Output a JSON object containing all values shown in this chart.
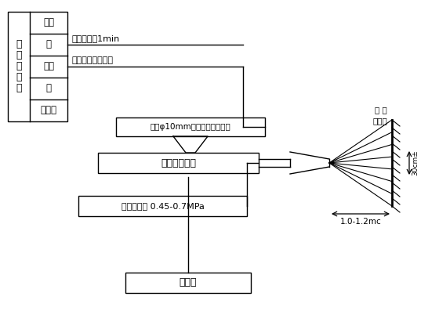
{
  "bg_color": "#ffffff",
  "text_color": "#000000",
  "table_items": [
    "水泥",
    "砂",
    "石子",
    "水",
    "外加剂"
  ],
  "table_header": "混\n凝\n土\n拌\n和",
  "mix_time_text": "拌和时间＜1min",
  "transport_text": "混凝土运输车运送",
  "sieve_text": "筛网φ10mm（滤出超径石子）",
  "machine_text": "混凝土喷射机",
  "pressure_text": "风压控制在 0.45-0.7MPa",
  "accelerator_text": "速凝剂",
  "spray_label1": "受 喷",
  "spray_label2": "围岩面",
  "dim1_text": "30cm±",
  "dim2_text": "1.0-1.2mc",
  "figsize": [
    5.6,
    4.2
  ],
  "dpi": 100
}
